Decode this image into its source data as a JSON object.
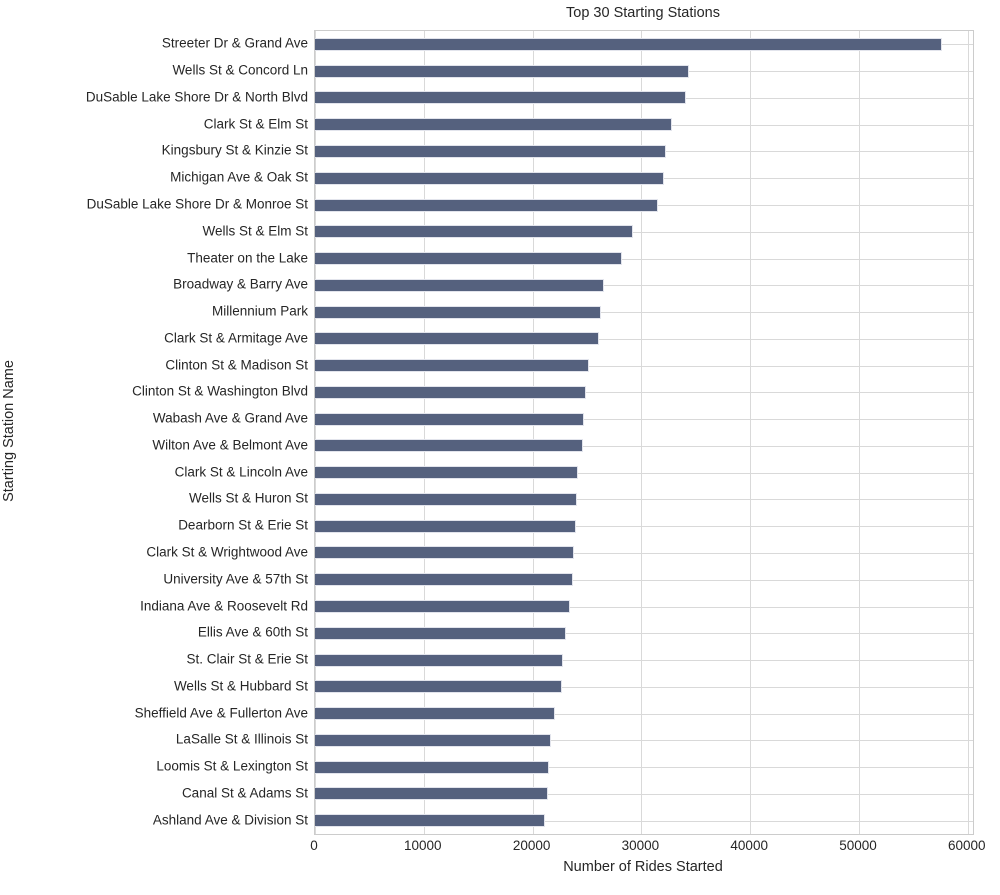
{
  "chart_data": {
    "type": "bar",
    "orientation": "horizontal",
    "title": "Top 30 Starting Stations",
    "xlabel": "Number of Rides Started",
    "ylabel": "Starting Station Name",
    "xlim": [
      0,
      60480
    ],
    "xticks": [
      0,
      10000,
      20000,
      30000,
      40000,
      50000,
      60000
    ],
    "grid": true,
    "legend": false,
    "categories": [
      "Streeter Dr & Grand Ave",
      "Wells St & Concord Ln",
      "DuSable Lake Shore Dr & North Blvd",
      "Clark St & Elm St",
      "Kingsbury St & Kinzie St",
      "Michigan Ave & Oak St",
      "DuSable Lake Shore Dr & Monroe St",
      "Wells St & Elm St",
      "Theater on the Lake",
      "Broadway & Barry Ave",
      "Millennium Park",
      "Clark St & Armitage Ave",
      "Clinton St & Madison St",
      "Clinton St & Washington Blvd",
      "Wabash Ave & Grand Ave",
      "Wilton Ave & Belmont Ave",
      "Clark St & Lincoln Ave",
      "Wells St & Huron St",
      "Dearborn St & Erie St",
      "Clark St & Wrightwood Ave",
      "University Ave & 57th St",
      "Indiana Ave & Roosevelt Rd",
      "Ellis Ave & 60th St",
      "St. Clair St & Erie St",
      "Wells St & Hubbard St",
      "Sheffield Ave & Fullerton Ave",
      "LaSalle St & Illinois St",
      "Loomis St & Lexington St",
      "Canal St & Adams St",
      "Ashland Ave & Division St"
    ],
    "values": [
      57600,
      34400,
      34100,
      32800,
      32300,
      32100,
      31500,
      29200,
      28200,
      26600,
      26300,
      26100,
      25200,
      24900,
      24700,
      24600,
      24200,
      24100,
      24000,
      23800,
      23700,
      23400,
      23100,
      22800,
      22700,
      22100,
      21700,
      21500,
      21400,
      21100
    ],
    "colors": {
      "bar_fill": "#55617e",
      "bar_edge": "#e2e4ec",
      "grid_line": "#d9d9d9",
      "axis_spine": "#cccccc",
      "text": "#262626"
    }
  }
}
